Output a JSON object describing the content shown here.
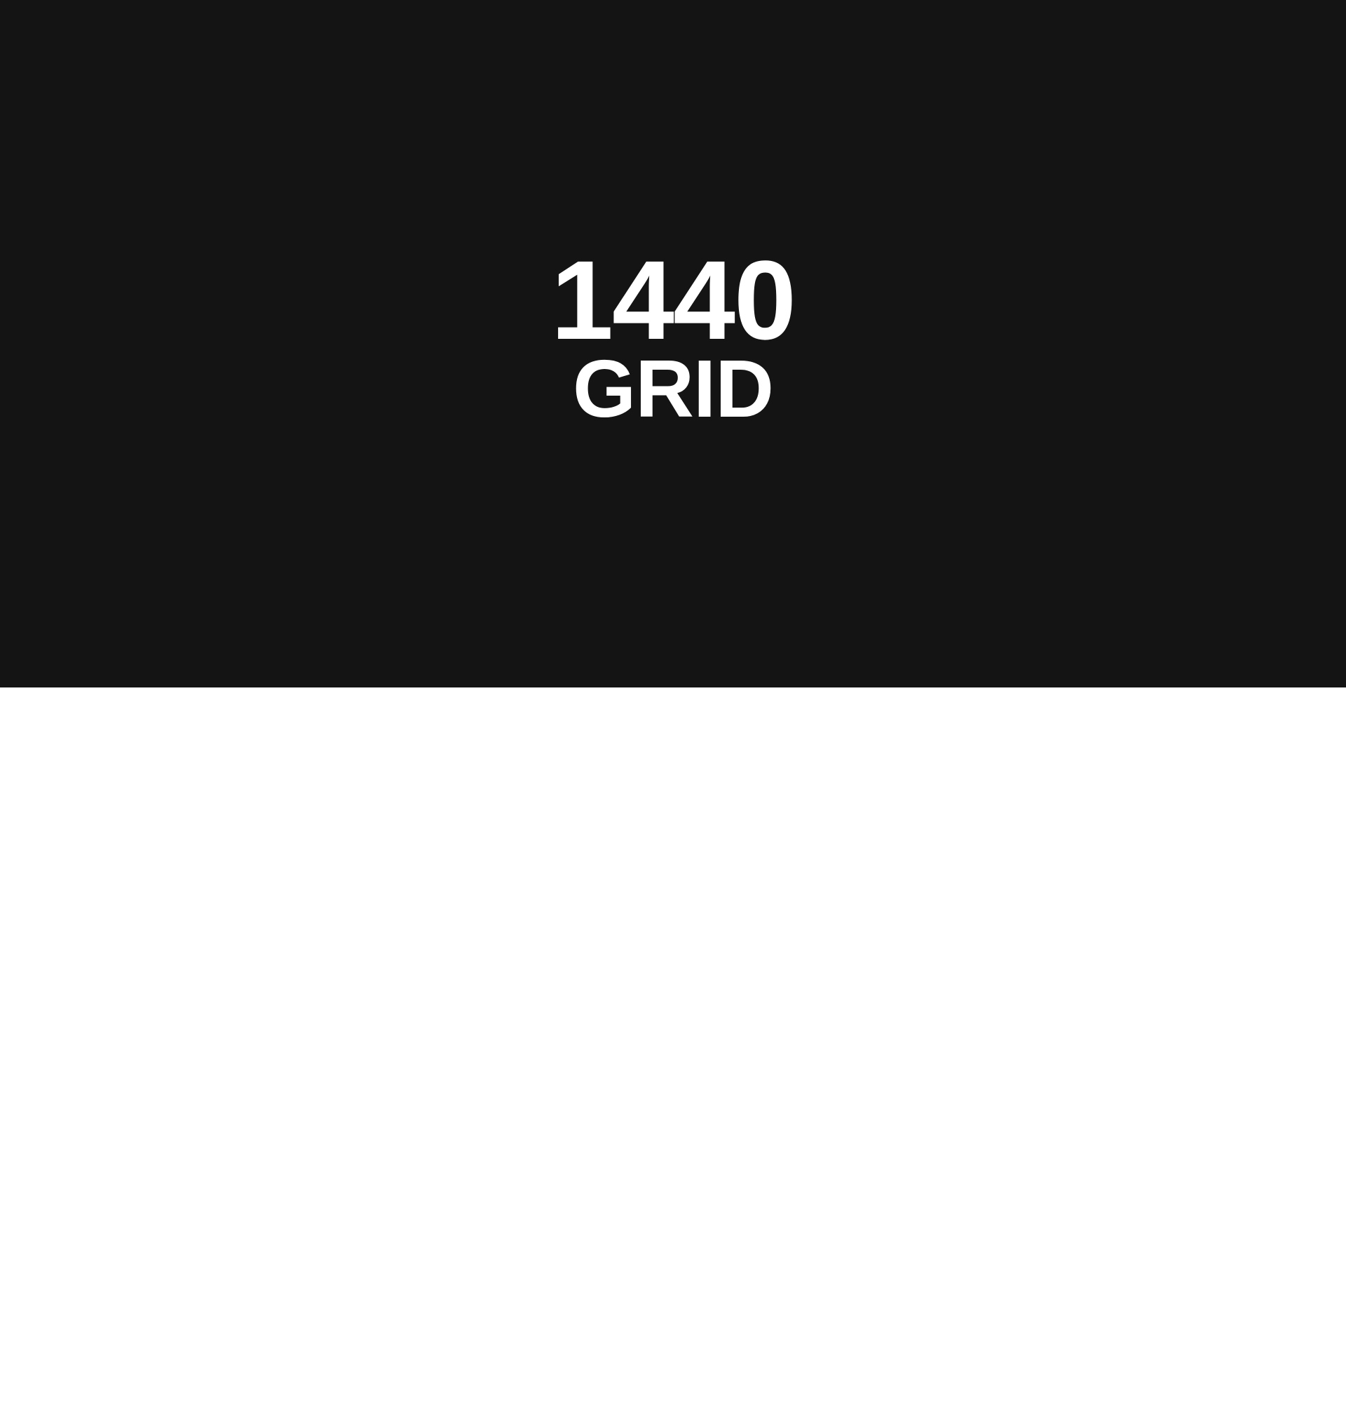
{
  "hero": {
    "title_number": "1440",
    "title_word": "GRID",
    "background_color": "#141414",
    "text_color": "#ffffff"
  },
  "content": {
    "background_color": "#ffffff"
  }
}
